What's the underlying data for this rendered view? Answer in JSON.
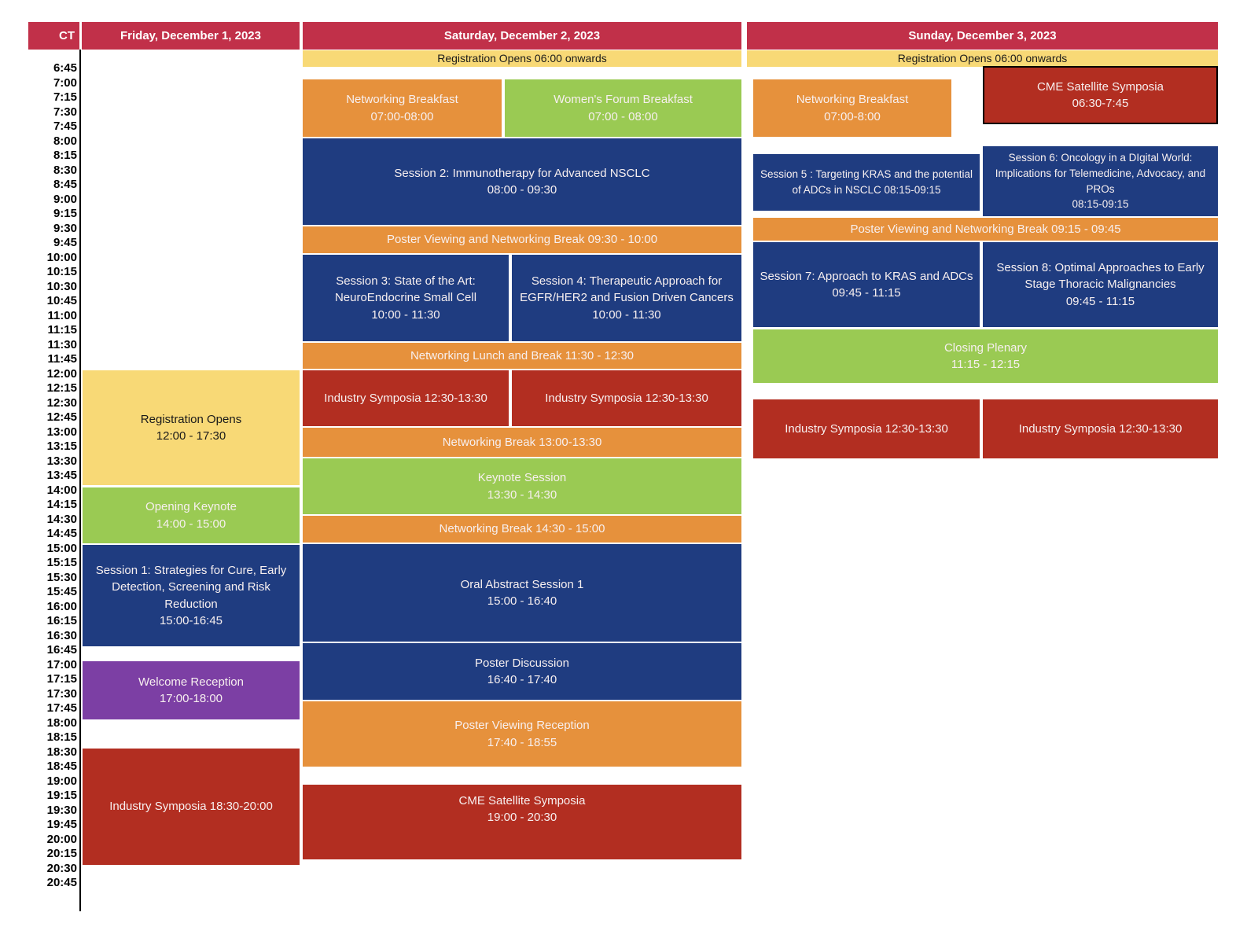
{
  "header": {
    "ct_label": "CT",
    "days": [
      {
        "label": "Friday, December 1, 2023"
      },
      {
        "label": "Saturday, December 2, 2023"
      },
      {
        "label": "Sunday, December 3, 2023"
      }
    ]
  },
  "time_axis": {
    "labels": [
      "6:45",
      "7:00",
      "7:15",
      "7:30",
      "7:45",
      "8:00",
      "8:15",
      "8:30",
      "8:45",
      "9:00",
      "9:15",
      "9:30",
      "9:45",
      "10:00",
      "10:15",
      "10:30",
      "10:45",
      "11:00",
      "11:15",
      "11:30",
      "11:45",
      "12:00",
      "12:15",
      "12:30",
      "12:45",
      "13:00",
      "13:15",
      "13:30",
      "13:45",
      "14:00",
      "14:15",
      "14:30",
      "14:45",
      "15:00",
      "15:15",
      "15:30",
      "15:45",
      "16:00",
      "16:15",
      "16:30",
      "16:45",
      "17:00",
      "17:15",
      "17:30",
      "17:45",
      "18:00",
      "18:15",
      "18:30",
      "18:45",
      "19:00",
      "19:15",
      "19:30",
      "19:45",
      "20:00",
      "20:15",
      "20:30",
      "20:45"
    ]
  },
  "colors": {
    "header": "#C13049",
    "yellow": "#F8D976",
    "orange": "#E6913C",
    "green": "#9ACA53",
    "blue": "#1F3C80",
    "red": "#B22E21",
    "purple": "#7C3FA4"
  },
  "events": [
    {
      "title": "Registration Opens",
      "time": "12:00 - 17:30"
    },
    {
      "title": "Opening Keynote",
      "time": "14:00 - 15:00"
    },
    {
      "title": "Session 1: Strategies for Cure, Early Detection, Screening and Risk Reduction",
      "time": "15:00-16:45"
    },
    {
      "title": "Welcome Reception",
      "time": "17:00-18:00"
    },
    {
      "title": "Industry Symposia 18:30-20:00"
    },
    {
      "title": "Registration Opens 06:00 onwards"
    },
    {
      "title": "Networking Breakfast",
      "time": "07:00-08:00"
    },
    {
      "title": "Women's Forum Breakfast",
      "time": "07:00 - 08:00"
    },
    {
      "title": "Session 2: Immunotherapy for Advanced NSCLC",
      "time": "08:00 - 09:30"
    },
    {
      "title": "Poster Viewing and Networking Break 09:30 - 10:00"
    },
    {
      "title": "Session 3: State of the Art: NeuroEndocrine Small Cell",
      "time": "10:00 - 11:30"
    },
    {
      "title": "Session 4: Therapeutic Approach for EGFR/HER2 and Fusion Driven Cancers",
      "time": "10:00 - 11:30"
    },
    {
      "title": "Networking Lunch and Break  11:30 - 12:30"
    },
    {
      "title": "Industry Symposia 12:30-13:30"
    },
    {
      "title": "Industry Symposia 12:30-13:30"
    },
    {
      "title": "Networking Break  13:00-13:30"
    },
    {
      "title": "Keynote Session",
      "time": "13:30 - 14:30"
    },
    {
      "title": "Networking Break 14:30 - 15:00"
    },
    {
      "title": "Oral Abstract Session 1",
      "time": "15:00 - 16:40"
    },
    {
      "title": "Poster Discussion",
      "time": "16:40 - 17:40"
    },
    {
      "title": "Poster Viewing Reception",
      "time": "17:40 - 18:55"
    },
    {
      "title": "CME Satellite Symposia",
      "time": "19:00 - 20:30"
    },
    {
      "title": "Registration Opens 06:00 onwards"
    },
    {
      "title": "Networking Breakfast",
      "time": "07:00-8:00"
    },
    {
      "title": "CME Satellite Symposia",
      "time": "06:30-7:45"
    },
    {
      "title": "Session 5 : Targeting KRAS and the potential of ADCs in NSCLC 08:15-09:15"
    },
    {
      "title": "Session 6: Oncology in a DIgital World: Implications for Telemedicine, Advocacy, and PROs",
      "time": "08:15-09:15"
    },
    {
      "title": "Poster Viewing and Networking Break 09:15 - 09:45"
    },
    {
      "title": "Session 7: Approach to KRAS and ADCs",
      "time": "09:45 - 11:15"
    },
    {
      "title": "Session 8: Optimal Approaches to Early Stage Thoracic Malignancies",
      "time": "09:45 - 11:15"
    },
    {
      "title": "Closing Plenary",
      "time": "11:15 - 12:15"
    },
    {
      "title": "Industry Symposia 12:30-13:30"
    },
    {
      "title": "Industry Symposia 12:30-13:30"
    }
  ]
}
